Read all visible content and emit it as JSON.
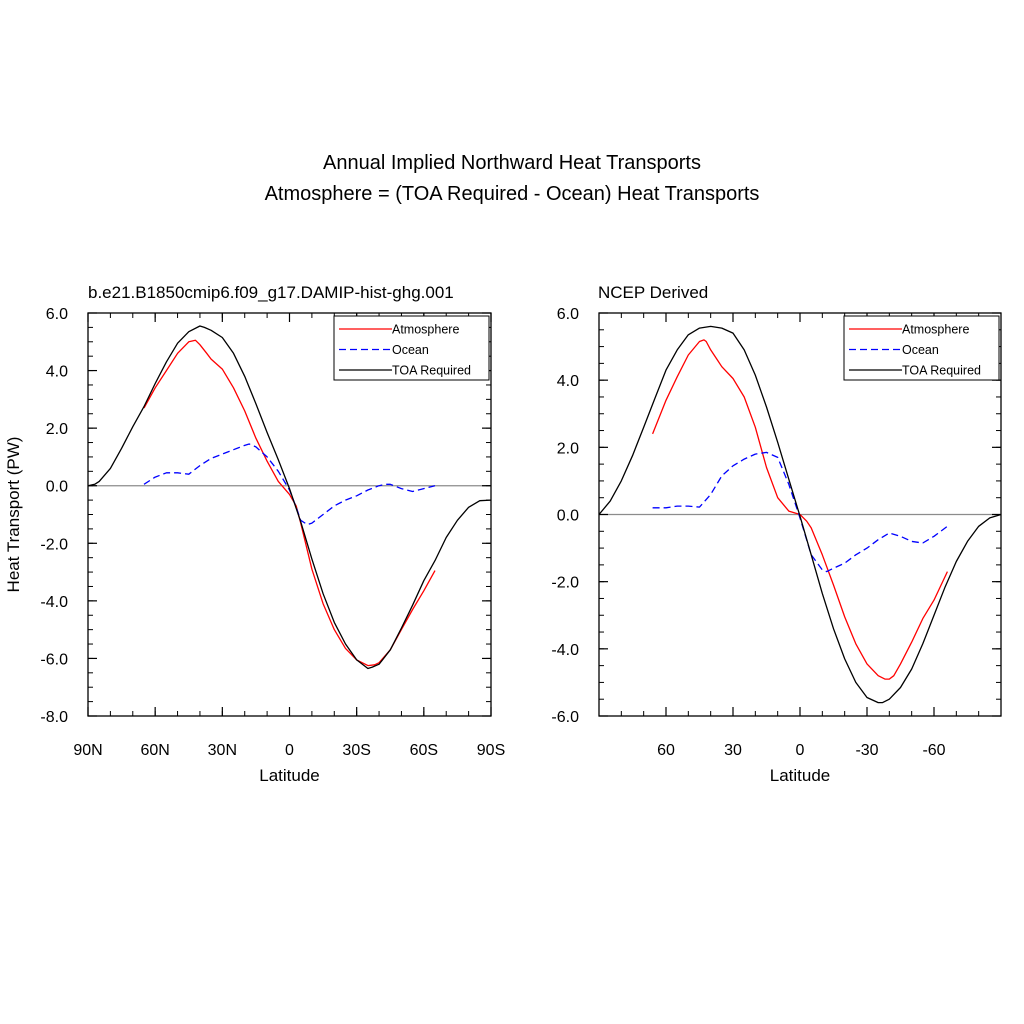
{
  "figure": {
    "title_line1": "Annual Implied Northward Heat Transports",
    "title_line2": "Atmosphere = (TOA Required - Ocean) Heat Transports"
  },
  "chart_data": [
    {
      "type": "line",
      "title": "b.e21.B1850cmip6.f09_g17.DAMIP-hist-ghg.001",
      "xlabel": "Latitude",
      "ylabel": "Heat Transport (PW)",
      "xlim": [
        90,
        -90
      ],
      "ylim": [
        -8,
        6
      ],
      "xticks": [
        90,
        60,
        30,
        0,
        -30,
        -60,
        -90
      ],
      "xtick_labels": [
        "90N",
        "60N",
        "30N",
        "0",
        "30S",
        "60S",
        "90S"
      ],
      "yticks": [
        6,
        4,
        2,
        0,
        -2,
        -4,
        -6,
        -8
      ],
      "ytick_labels": [
        "6.0",
        "4.0",
        "2.0",
        "0.0",
        "-2.0",
        "-4.0",
        "-6.0",
        "-8.0"
      ],
      "zero_line": true,
      "legend": "top-right",
      "series": [
        {
          "name": "Atmosphere",
          "color": "#ff0000",
          "dash": "solid",
          "x": [
            65,
            60,
            55,
            50,
            45,
            42,
            40,
            37,
            35,
            30,
            25,
            20,
            15,
            10,
            5,
            0,
            -3,
            -5,
            -10,
            -15,
            -20,
            -25,
            -30,
            -35,
            -38,
            -40,
            -45,
            -50,
            -55,
            -60,
            -65
          ],
          "y": [
            2.7,
            3.4,
            4.0,
            4.6,
            5.0,
            5.05,
            4.9,
            4.6,
            4.4,
            4.05,
            3.4,
            2.6,
            1.65,
            0.85,
            0.15,
            -0.3,
            -0.7,
            -1.3,
            -2.9,
            -4.1,
            -5.0,
            -5.65,
            -6.05,
            -6.25,
            -6.22,
            -6.15,
            -5.7,
            -5.0,
            -4.3,
            -3.65,
            -2.95
          ]
        },
        {
          "name": "Ocean",
          "color": "#0000ff",
          "dash": "dashed",
          "x": [
            65,
            60,
            55,
            50,
            45,
            40,
            35,
            30,
            25,
            20,
            18,
            15,
            10,
            5,
            0,
            -3,
            -5,
            -8,
            -10,
            -15,
            -20,
            -25,
            -30,
            -35,
            -40,
            -43,
            -45,
            -50,
            -55,
            -60,
            -65
          ],
          "y": [
            0.05,
            0.3,
            0.45,
            0.45,
            0.4,
            0.7,
            0.95,
            1.1,
            1.25,
            1.4,
            1.45,
            1.35,
            1.0,
            0.5,
            -0.15,
            -0.75,
            -1.2,
            -1.35,
            -1.3,
            -1.0,
            -0.7,
            -0.5,
            -0.35,
            -0.15,
            0.0,
            0.05,
            0.05,
            -0.1,
            -0.2,
            -0.1,
            0.0
          ]
        },
        {
          "name": "TOA Required",
          "color": "#000000",
          "dash": "solid",
          "x": [
            90,
            87,
            85,
            80,
            75,
            70,
            65,
            60,
            55,
            50,
            45,
            40,
            38,
            35,
            30,
            25,
            20,
            15,
            10,
            5,
            0,
            -5,
            -10,
            -15,
            -20,
            -25,
            -30,
            -35,
            -37,
            -40,
            -45,
            -50,
            -55,
            -60,
            -65,
            -70,
            -75,
            -80,
            -85,
            -90
          ],
          "y": [
            0.0,
            0.05,
            0.15,
            0.6,
            1.3,
            2.05,
            2.75,
            3.55,
            4.3,
            4.95,
            5.35,
            5.55,
            5.5,
            5.4,
            5.15,
            4.6,
            3.8,
            2.85,
            1.85,
            0.9,
            -0.1,
            -1.25,
            -2.55,
            -3.75,
            -4.75,
            -5.5,
            -6.05,
            -6.35,
            -6.3,
            -6.2,
            -5.7,
            -4.95,
            -4.15,
            -3.3,
            -2.6,
            -1.8,
            -1.2,
            -0.75,
            -0.52,
            -0.5
          ]
        }
      ]
    },
    {
      "type": "line",
      "title": "NCEP Derived",
      "xlabel": "Latitude",
      "ylabel": "",
      "xlim": [
        90,
        -90
      ],
      "ylim": [
        -6,
        6
      ],
      "xticks": [
        60,
        30,
        0,
        -30,
        -60
      ],
      "xtick_labels": [
        "60",
        "30",
        "0",
        "-30",
        "-60"
      ],
      "yticks": [
        6,
        4,
        2,
        0,
        -2,
        -4,
        -6
      ],
      "ytick_labels": [
        "6.0",
        "4.0",
        "2.0",
        "0.0",
        "-2.0",
        "-4.0",
        "-6.0"
      ],
      "zero_line": true,
      "legend": "top-right",
      "series": [
        {
          "name": "Atmosphere",
          "color": "#ff0000",
          "dash": "solid",
          "x": [
            66,
            60,
            55,
            50,
            45,
            43,
            42,
            40,
            37,
            35,
            30,
            25,
            20,
            15,
            10,
            5,
            0,
            -3,
            -5,
            -10,
            -15,
            -20,
            -25,
            -30,
            -35,
            -38,
            -40,
            -42,
            -45,
            -50,
            -55,
            -60,
            -66
          ],
          "y": [
            2.4,
            3.4,
            4.1,
            4.75,
            5.15,
            5.2,
            5.15,
            4.9,
            4.6,
            4.4,
            4.05,
            3.5,
            2.6,
            1.4,
            0.5,
            0.1,
            0.0,
            -0.2,
            -0.4,
            -1.2,
            -2.1,
            -3.05,
            -3.85,
            -4.45,
            -4.8,
            -4.9,
            -4.9,
            -4.8,
            -4.45,
            -3.8,
            -3.1,
            -2.55,
            -1.7
          ]
        },
        {
          "name": "Ocean",
          "color": "#0000ff",
          "dash": "dashed",
          "x": [
            66,
            60,
            55,
            50,
            45,
            40,
            35,
            30,
            25,
            20,
            15,
            10,
            5,
            0,
            -5,
            -10,
            -12,
            -15,
            -20,
            -25,
            -30,
            -35,
            -40,
            -45,
            -50,
            -55,
            -60,
            -66
          ],
          "y": [
            0.2,
            0.2,
            0.25,
            0.25,
            0.22,
            0.6,
            1.15,
            1.45,
            1.65,
            1.8,
            1.85,
            1.7,
            0.9,
            -0.1,
            -1.2,
            -1.65,
            -1.7,
            -1.6,
            -1.45,
            -1.2,
            -1.0,
            -0.75,
            -0.55,
            -0.65,
            -0.8,
            -0.85,
            -0.65,
            -0.35
          ]
        },
        {
          "name": "TOA Required",
          "color": "#000000",
          "dash": "solid",
          "x": [
            90,
            85,
            80,
            75,
            70,
            65,
            60,
            55,
            50,
            45,
            40,
            35,
            30,
            25,
            20,
            15,
            10,
            5,
            0,
            -5,
            -10,
            -15,
            -20,
            -25,
            -30,
            -35,
            -37,
            -40,
            -45,
            -50,
            -55,
            -60,
            -65,
            -70,
            -75,
            -80,
            -85,
            -90
          ],
          "y": [
            0.0,
            0.4,
            1.0,
            1.75,
            2.6,
            3.45,
            4.3,
            4.9,
            5.35,
            5.55,
            5.6,
            5.55,
            5.4,
            4.9,
            4.15,
            3.2,
            2.15,
            1.05,
            -0.05,
            -1.2,
            -2.35,
            -3.4,
            -4.3,
            -5.0,
            -5.45,
            -5.6,
            -5.6,
            -5.5,
            -5.15,
            -4.6,
            -3.85,
            -3.0,
            -2.15,
            -1.4,
            -0.8,
            -0.35,
            -0.1,
            0.0
          ]
        }
      ]
    }
  ]
}
